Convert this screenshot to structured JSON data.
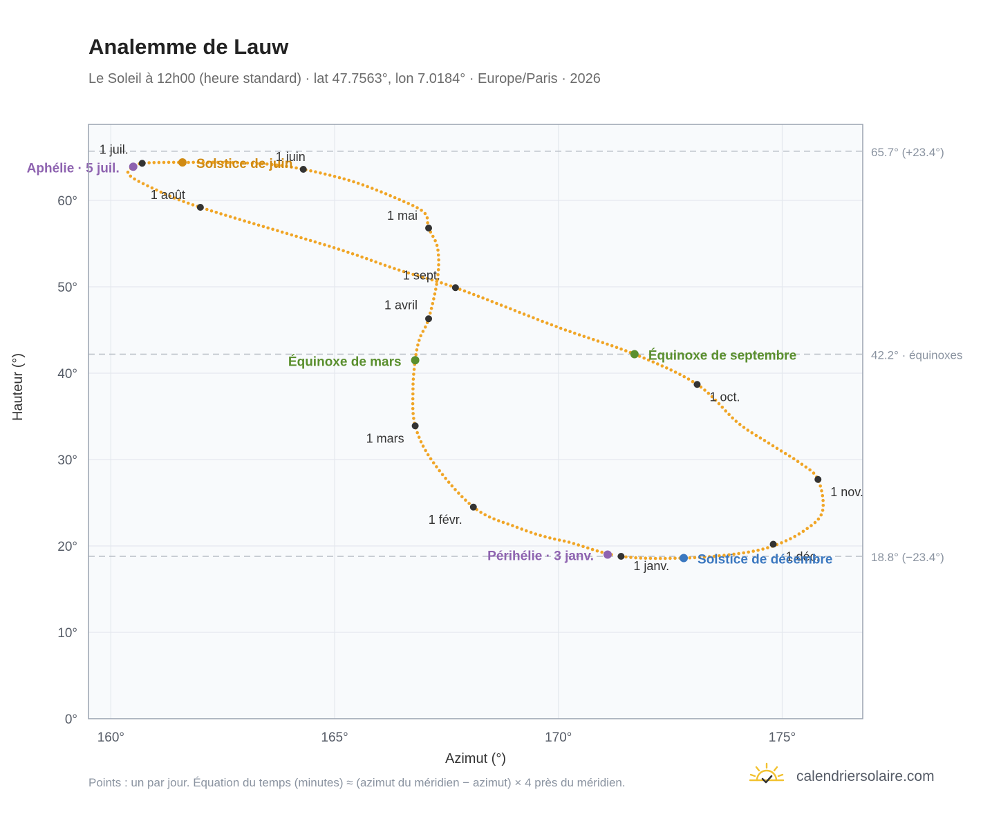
{
  "title": "Analemme de Lauw",
  "subtitle": "Le Soleil à 12h00 (heure standard) · lat 47.7563°, lon 7.0184° · Europe/Paris · 2026",
  "footnote": "Points : un par jour. Équation du temps (minutes) ≈ (azimut du méridien − azimut) × 4 près du méridien.",
  "brand": {
    "name": "calendriersolaire.com",
    "logo_icon": "sun-calendar-icon"
  },
  "colors": {
    "curve": "#f0a526",
    "month_marker": "#333333",
    "solstice_june": "#d08a12",
    "equinox": "#5a8f2e",
    "solstice_december": "#3b78c0",
    "apsis": "#8e63b0",
    "reference_line": "#b8bec6",
    "plot_background": "#f8fafc",
    "grid": "#e4e8ee",
    "frame": "#9aa3b0"
  },
  "chart_data": {
    "type": "scatter",
    "xlabel": "Azimut (°)",
    "ylabel": "Hauteur (°)",
    "xlim": [
      159.5,
      176.8
    ],
    "ylim": [
      0,
      68.8
    ],
    "grid": true,
    "x_ticks": [
      160,
      165,
      170,
      175
    ],
    "x_tick_labels": [
      "160°",
      "165°",
      "170°",
      "175°"
    ],
    "y_ticks": [
      0,
      10,
      20,
      30,
      40,
      50,
      60
    ],
    "y_tick_labels": [
      "0°",
      "10°",
      "20°",
      "30°",
      "40°",
      "50°",
      "60°"
    ],
    "reference_lines": [
      {
        "y": 65.7,
        "label": "65.7° (+23.4°)"
      },
      {
        "y": 42.2,
        "label": "42.2° · équinoxes"
      },
      {
        "y": 18.8,
        "label": "18.8° (−23.4°)"
      }
    ],
    "path_points": [
      [
        171.4,
        18.8
      ],
      [
        172.8,
        18.6
      ],
      [
        174.0,
        19.1
      ],
      [
        174.8,
        20.0
      ],
      [
        175.5,
        21.8
      ],
      [
        175.9,
        24.0
      ],
      [
        175.8,
        27.7
      ],
      [
        175.4,
        29.6
      ],
      [
        174.7,
        31.9
      ],
      [
        174.0,
        34.3
      ],
      [
        173.1,
        38.7
      ],
      [
        171.7,
        42.2
      ],
      [
        170.0,
        45.3
      ],
      [
        167.7,
        49.9
      ],
      [
        166.4,
        52.0
      ],
      [
        165.0,
        54.5
      ],
      [
        162.0,
        59.2
      ],
      [
        160.9,
        61.5
      ],
      [
        160.4,
        63.0
      ],
      [
        160.5,
        63.9
      ],
      [
        160.7,
        64.3
      ],
      [
        161.2,
        64.4
      ],
      [
        161.6,
        64.4
      ],
      [
        162.5,
        64.4
      ],
      [
        163.5,
        64.2
      ],
      [
        164.3,
        63.6
      ],
      [
        165.4,
        62.2
      ],
      [
        166.4,
        60.2
      ],
      [
        167.0,
        58.6
      ],
      [
        167.1,
        56.8
      ],
      [
        167.3,
        54.5
      ],
      [
        167.3,
        51.0
      ],
      [
        167.1,
        46.3
      ],
      [
        166.9,
        44.0
      ],
      [
        166.8,
        41.5
      ],
      [
        166.75,
        38.0
      ],
      [
        166.8,
        33.9
      ],
      [
        167.2,
        29.7
      ],
      [
        168.1,
        24.5
      ],
      [
        169.0,
        22.3
      ],
      [
        170.2,
        20.5
      ],
      [
        171.4,
        18.8
      ]
    ],
    "month_markers": [
      {
        "label": "1 janv.",
        "x": 171.4,
        "y": 18.8
      },
      {
        "label": "1 févr.",
        "x": 168.1,
        "y": 24.5
      },
      {
        "label": "1 mars",
        "x": 166.8,
        "y": 33.9
      },
      {
        "label": "1 avril",
        "x": 167.1,
        "y": 46.3
      },
      {
        "label": "1 mai",
        "x": 167.1,
        "y": 56.8
      },
      {
        "label": "1 juin",
        "x": 164.3,
        "y": 63.6
      },
      {
        "label": "1 juil.",
        "x": 160.7,
        "y": 64.3
      },
      {
        "label": "1 août",
        "x": 162.0,
        "y": 59.2
      },
      {
        "label": "1 sept.",
        "x": 167.7,
        "y": 49.9
      },
      {
        "label": "1 oct.",
        "x": 173.1,
        "y": 38.7
      },
      {
        "label": "1 nov.",
        "x": 175.8,
        "y": 27.7
      },
      {
        "label": "1 déc.",
        "x": 174.8,
        "y": 20.2
      }
    ],
    "events": [
      {
        "label": "Solstice de juin",
        "x": 161.6,
        "y": 64.4,
        "kind": "solstice_june"
      },
      {
        "label": "Équinoxe de mars",
        "x": 166.8,
        "y": 41.5,
        "kind": "equinox"
      },
      {
        "label": "Équinoxe de septembre",
        "x": 171.7,
        "y": 42.2,
        "kind": "equinox"
      },
      {
        "label": "Solstice de décembre",
        "x": 172.8,
        "y": 18.6,
        "kind": "solstice_december"
      },
      {
        "label": "Aphélie · 5 juil.",
        "x": 160.5,
        "y": 63.9,
        "kind": "apsis"
      },
      {
        "label": "Périhélie · 3 janv.",
        "x": 171.1,
        "y": 19.0,
        "kind": "apsis"
      }
    ]
  }
}
